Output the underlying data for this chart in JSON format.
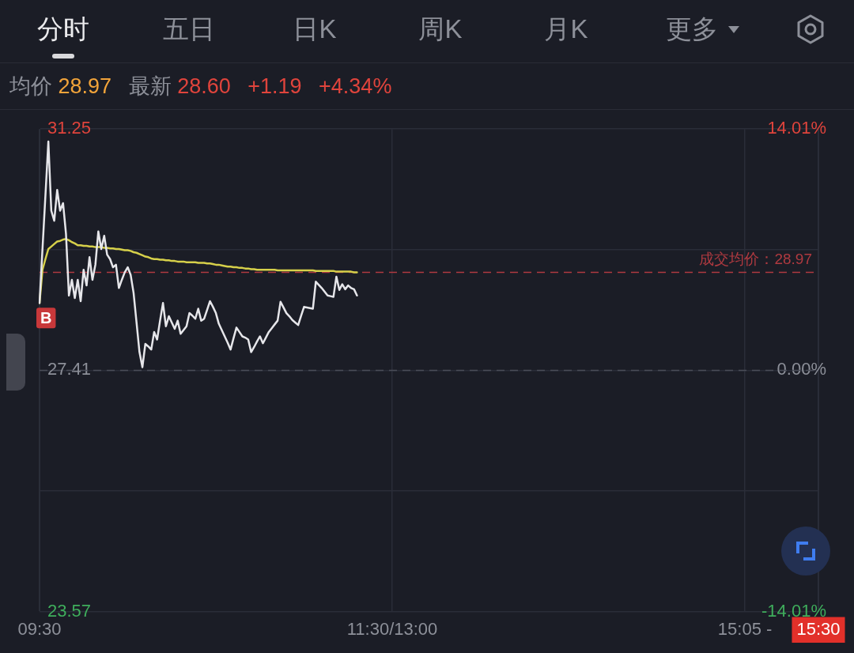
{
  "chart_data": {
    "type": "line",
    "subtitle": "均价 28.97 最新 28.60 +1.19 +4.34%",
    "annotations": [
      "分时",
      "五日",
      "日K",
      "周K",
      "月K",
      "更多",
      {
        "text": "B",
        "x": "09:30",
        "y": 28.48
      }
    ],
    "categories": [
      "09:30",
      null,
      null,
      null,
      null,
      null,
      null,
      null,
      null,
      null,
      null,
      null,
      null,
      null,
      null,
      null,
      null,
      null,
      null,
      null,
      null,
      null,
      null,
      null,
      null,
      null,
      null,
      null,
      null,
      null,
      null,
      null,
      null,
      null,
      null,
      null,
      null,
      null,
      null,
      null,
      null,
      null,
      null,
      null,
      null,
      null,
      null,
      null,
      null,
      null,
      null,
      null,
      null,
      null,
      null,
      null,
      null,
      null,
      null,
      null,
      null,
      null,
      null,
      null,
      null,
      null,
      null,
      null,
      null,
      null,
      null,
      null,
      null,
      null,
      null,
      null,
      null,
      null,
      null,
      null,
      null,
      null,
      null,
      null,
      null,
      null,
      null,
      null,
      null,
      null,
      null,
      null,
      null,
      null,
      null,
      null,
      null,
      null,
      null,
      null,
      null,
      null,
      null,
      null,
      null,
      null,
      null,
      null,
      null,
      null,
      null,
      null,
      null,
      null,
      null,
      null,
      null,
      null,
      null,
      null,
      "11:30/13:00",
      null,
      null,
      null,
      null,
      null,
      null,
      null,
      null,
      null,
      null,
      null,
      null,
      null,
      null,
      null,
      null,
      null,
      null,
      null,
      null,
      null,
      null,
      null,
      null,
      null,
      null,
      null,
      null,
      null,
      null,
      null,
      null,
      null,
      null,
      null,
      null,
      null,
      null,
      null,
      null,
      null,
      null,
      null,
      null,
      null,
      null,
      null,
      null,
      null,
      null,
      null,
      null,
      null,
      null,
      null,
      null,
      null,
      null,
      null,
      null,
      null,
      null,
      null,
      null,
      null,
      null,
      null,
      null,
      null,
      null,
      null,
      null,
      null,
      null,
      null,
      null,
      null,
      null,
      null,
      null,
      null,
      null,
      null,
      null,
      null,
      null,
      null,
      null,
      null,
      null,
      null,
      null,
      null,
      null,
      null,
      null,
      null,
      null,
      null,
      null,
      null,
      null,
      null,
      null,
      null,
      null,
      null,
      null,
      null,
      null,
      null,
      null,
      null,
      null,
      null,
      null,
      null,
      null,
      null,
      "15:05 -",
      null,
      null,
      null,
      null,
      null,
      null,
      null,
      null,
      null,
      null,
      null,
      null,
      null,
      null,
      null,
      null,
      null,
      null,
      null,
      null,
      null,
      null,
      null,
      null,
      "15:30"
    ],
    "series": [
      {
        "color": "#e6e6ea",
        "values": [
          28.48,
          29.34,
          30.19,
          31.05,
          29.95,
          29.79,
          30.28,
          29.95,
          30.07,
          29.58,
          28.6,
          28.85,
          28.56,
          28.85,
          28.51,
          29.01,
          28.76,
          29.21,
          28.85,
          29.09,
          29.62,
          29.34,
          29.55,
          29.25,
          29.18,
          29.05,
          29.09,
          28.72,
          28.85,
          28.97,
          29.05,
          28.93,
          28.64,
          28.17,
          27.7,
          27.46,
          27.83,
          27.79,
          27.74,
          28.02,
          27.9,
          28.2,
          28.48,
          28.11,
          28.27,
          28.17,
          28.07,
          28.2,
          27.99,
          28.05,
          28.11,
          28.32,
          28.28,
          28.23,
          28.39,
          28.2,
          28.23,
          28.37,
          28.51,
          28.42,
          28.32,
          28.15,
          28.05,
          27.95,
          27.85,
          27.74,
          27.92,
          28.09,
          28.02,
          27.95,
          27.93,
          27.9,
          27.7,
          27.78,
          27.87,
          27.95,
          27.84,
          27.93,
          28.02,
          28.08,
          28.14,
          28.2,
          28.5,
          28.41,
          28.32,
          28.27,
          28.21,
          28.17,
          28.13,
          28.28,
          28.42,
          28.41,
          28.4,
          28.39,
          28.82,
          28.77,
          28.72,
          28.66,
          28.6,
          28.59,
          28.58,
          28.9,
          28.69,
          28.78,
          28.7,
          28.76,
          28.72,
          28.7,
          28.6,
          null,
          null,
          null,
          null,
          null,
          null,
          null,
          null,
          null,
          null,
          null,
          null,
          null,
          null,
          null,
          null,
          null,
          null,
          null,
          null,
          null,
          null,
          null,
          null,
          null,
          null,
          null,
          null,
          null,
          null,
          null,
          null,
          null,
          null,
          null,
          null,
          null,
          null,
          null,
          null,
          null,
          null,
          null,
          null,
          null,
          null,
          null,
          null,
          null,
          null,
          null,
          null,
          null,
          null,
          null,
          null,
          null,
          null,
          null,
          null,
          null,
          null,
          null,
          null,
          null,
          null,
          null,
          null,
          null,
          null,
          null,
          null,
          null,
          null,
          null,
          null,
          null,
          null,
          null,
          null,
          null,
          null,
          null,
          null,
          null,
          null,
          null,
          null,
          null,
          null,
          null,
          null,
          null,
          null,
          null,
          null,
          null,
          null,
          null,
          null,
          null,
          null,
          null,
          null,
          null,
          null,
          null,
          null,
          null,
          null,
          null,
          null,
          null,
          null,
          null,
          null,
          null,
          null,
          null,
          null,
          null,
          null,
          null,
          null,
          null,
          null,
          null,
          null,
          null,
          null,
          null,
          null,
          null,
          null,
          null,
          null,
          null,
          null,
          null,
          null,
          null,
          null,
          null,
          null,
          null,
          null,
          null,
          null,
          null,
          null,
          null,
          null,
          null,
          null,
          null,
          null,
          null
        ]
      },
      {
        "color": "#d6d04a",
        "values": [
          28.48,
          29.01,
          29.18,
          29.34,
          29.38,
          29.42,
          29.46,
          29.47,
          29.49,
          29.5,
          29.48,
          29.45,
          29.43,
          29.4,
          29.4,
          29.39,
          29.39,
          29.38,
          29.38,
          29.37,
          29.37,
          29.37,
          29.36,
          29.36,
          29.35,
          29.35,
          29.34,
          29.34,
          29.33,
          29.32,
          29.32,
          29.31,
          29.29,
          29.28,
          29.26,
          29.24,
          29.22,
          29.21,
          29.19,
          29.18,
          29.18,
          29.17,
          29.17,
          29.16,
          29.16,
          29.15,
          29.15,
          29.14,
          29.14,
          29.14,
          29.13,
          29.13,
          29.13,
          29.13,
          29.12,
          29.12,
          29.12,
          29.11,
          29.11,
          29.1,
          29.09,
          29.09,
          29.08,
          29.07,
          29.06,
          29.06,
          29.05,
          29.05,
          29.04,
          29.04,
          29.03,
          29.03,
          29.02,
          29.02,
          29.01,
          29.01,
          29.01,
          29.01,
          29.01,
          29.01,
          29.01,
          29.0,
          29.0,
          29.0,
          29.0,
          29.0,
          29.0,
          29.0,
          29.0,
          29.0,
          29.0,
          29.0,
          29.0,
          29.0,
          28.99,
          28.99,
          28.99,
          28.99,
          28.99,
          28.99,
          28.99,
          28.98,
          28.98,
          28.98,
          28.98,
          28.98,
          28.98,
          28.97,
          28.97,
          null,
          null,
          null,
          null,
          null,
          null,
          null,
          null,
          null,
          null,
          null,
          null,
          null,
          null,
          null,
          null,
          null,
          null,
          null,
          null,
          null,
          null,
          null,
          null,
          null,
          null,
          null,
          null,
          null,
          null,
          null,
          null,
          null,
          null,
          null,
          null,
          null,
          null,
          null,
          null,
          null,
          null,
          null,
          null,
          null,
          null,
          null,
          null,
          null,
          null,
          null,
          null,
          null,
          null,
          null,
          null,
          null,
          null,
          null,
          null,
          null,
          null,
          null,
          null,
          null,
          null,
          null,
          null,
          null,
          null,
          null,
          null,
          null,
          null,
          null,
          null,
          null,
          null,
          null,
          null,
          null,
          null,
          null,
          null,
          null,
          null,
          null,
          null,
          null,
          null,
          null,
          null,
          null,
          null,
          null,
          null,
          null,
          null,
          null,
          null,
          null,
          null,
          null,
          null,
          null,
          null,
          null,
          null,
          null,
          null,
          null,
          null,
          null,
          null,
          null,
          null,
          null,
          null,
          null,
          null,
          null,
          null,
          null,
          null,
          null,
          null,
          null,
          null,
          null,
          null,
          null,
          null,
          null,
          null,
          null,
          null,
          null,
          null,
          null,
          null,
          null,
          null,
          null,
          null,
          null,
          null,
          null,
          null,
          null,
          null,
          null,
          null,
          null,
          null,
          null,
          null,
          null
        ]
      }
    ],
    "ylim": [
      23.57,
      31.25
    ],
    "yticks": [
      31.25,
      {
        "value": 29.33,
        "label": null
      },
      27.41,
      {
        "value": 25.49,
        "label": null
      },
      23.57
    ],
    "y2lim": [
      -14.01,
      14.01
    ],
    "y2ticks": [
      {
        "value": 14.01,
        "label": "14.01%"
      },
      {
        "value": 0,
        "label": "0.00%"
      },
      {
        "value": -14.01,
        "label": "-14.01%"
      }
    ],
    "ref_lines": [
      {
        "axis": "y",
        "value": 28.97,
        "label": "成交均价：28.97",
        "color": "#b03a40",
        "line_style": "dashed"
      },
      {
        "axis": "y",
        "value": 27.41,
        "color": "#4a4d58",
        "line_style": "dashed"
      }
    ],
    "grid": true
  }
}
